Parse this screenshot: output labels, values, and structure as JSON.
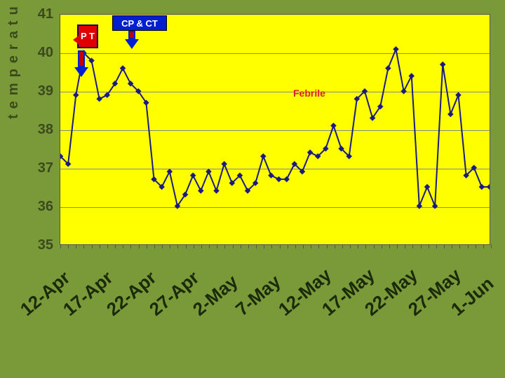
{
  "chart": {
    "type": "line",
    "y_axis_label": "temperature (celsius)",
    "ylim": [
      35,
      41
    ],
    "ytick_step": 1,
    "y_ticks": [
      35,
      36,
      37,
      38,
      39,
      40,
      41
    ],
    "label_fontsize": 20,
    "tick_fontsize": 20,
    "tick_color": "#3a4a1a",
    "background_color": "#7a9a3a",
    "plot_background": "#ffff00",
    "grid_color": "#888888",
    "line_color": "#1a1a80",
    "line_width": 2,
    "marker_style": "diamond",
    "marker_size": 6,
    "marker_color": "#1a1a80",
    "x_major_labels": [
      "12-Apr",
      "17-Apr",
      "22-Apr",
      "27-Apr",
      "2-May",
      "7-May",
      "12-May",
      "17-May",
      "22-May",
      "27-May",
      "1-Jun"
    ],
    "x_label_rotation": -40,
    "x_label_fontsize": 26,
    "x_minor_tick_count": 49,
    "values": [
      37.3,
      37.1,
      38.9,
      40.0,
      39.8,
      38.8,
      38.9,
      39.2,
      39.6,
      39.2,
      39.0,
      38.7,
      36.7,
      36.5,
      36.9,
      36.0,
      36.3,
      36.8,
      36.4,
      36.9,
      36.4,
      37.1,
      36.6,
      36.8,
      36.4,
      36.6,
      37.3,
      36.8,
      36.7,
      36.7,
      37.1,
      36.9,
      37.4,
      37.3,
      37.5,
      38.1,
      37.5,
      37.3,
      38.8,
      39.0,
      38.3,
      38.6,
      39.6,
      40.1,
      39.0,
      39.4,
      36.0,
      36.5,
      36.0,
      39.7,
      38.4,
      38.9,
      36.8,
      37.0,
      36.5,
      36.5
    ],
    "callouts": {
      "pt": {
        "text": "P\nT",
        "bg": "#e00000",
        "border": "#000080",
        "text_color": "#ffffff"
      },
      "cpct": {
        "text": "CP & CT",
        "bg": "#0020d0",
        "border": "#000000",
        "text_color": "#ffffff"
      },
      "arrow_fill": "#c00000",
      "arrow_outline": "#0020d0"
    },
    "annotation": {
      "text": "Febrile",
      "color": "#e02020"
    }
  }
}
